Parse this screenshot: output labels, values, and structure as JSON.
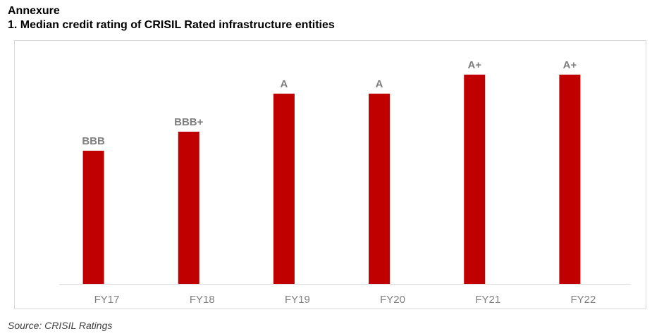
{
  "heading": {
    "section": "Annexure",
    "title": "1.  Median credit rating of CRISIL Rated infrastructure entities"
  },
  "source": "Source: CRISIL Ratings",
  "chart_data": {
    "type": "bar",
    "title": "",
    "xlabel": "",
    "ylabel": "",
    "categories": [
      "FY17",
      "FY18",
      "FY19",
      "FY20",
      "FY21",
      "FY22"
    ],
    "values": [
      7,
      8,
      10,
      10,
      11,
      11
    ],
    "value_scale": "rating notch",
    "data_labels": [
      "BBB",
      "BBB+",
      "A",
      "A",
      "A+",
      "A+"
    ],
    "ylim": [
      0,
      12.7
    ],
    "grid": false,
    "legend": "none",
    "colors": {
      "bar": "#c00000",
      "data_label": "#7f7f7f",
      "tick_label": "#808080",
      "axis": "#d9d9d9"
    }
  }
}
